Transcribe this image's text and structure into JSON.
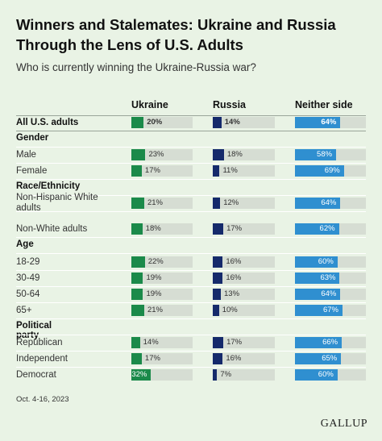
{
  "title": "Winners and Stalemates: Ukraine and Russia Through the Lens of U.S. Adults",
  "subtitle": "Who is currently winning the Ukraine-Russia war?",
  "footer": "Oct. 4-16, 2023",
  "logo": "GALLUP",
  "chart_data": {
    "type": "bar",
    "orientation": "horizontal",
    "unit": "%",
    "xlim": [
      0,
      100
    ],
    "series": [
      {
        "name": "Ukraine",
        "color": "#1b8a4a"
      },
      {
        "name": "Russia",
        "color": "#152a6b"
      },
      {
        "name": "Neither side",
        "color": "#2f8fd0"
      }
    ],
    "rows": [
      {
        "kind": "row",
        "label": "All U.S. adults",
        "bold": true,
        "values": [
          20,
          14,
          64
        ]
      },
      {
        "kind": "section",
        "label": "Gender"
      },
      {
        "kind": "row",
        "label": "Male",
        "values": [
          23,
          18,
          58
        ]
      },
      {
        "kind": "row",
        "label": "Female",
        "values": [
          17,
          11,
          69
        ]
      },
      {
        "kind": "section",
        "label": "Race/Ethnicity"
      },
      {
        "kind": "row",
        "label": "Non-Hispanic White adults",
        "values": [
          21,
          12,
          64
        ]
      },
      {
        "kind": "row",
        "label": "Non-White adults",
        "values": [
          18,
          17,
          62
        ]
      },
      {
        "kind": "section",
        "label": "Age"
      },
      {
        "kind": "row",
        "label": "18-29",
        "values": [
          22,
          16,
          60
        ]
      },
      {
        "kind": "row",
        "label": "30-49",
        "values": [
          19,
          16,
          63
        ]
      },
      {
        "kind": "row",
        "label": "50-64",
        "values": [
          19,
          13,
          64
        ]
      },
      {
        "kind": "row",
        "label": "65+",
        "values": [
          21,
          10,
          67
        ]
      },
      {
        "kind": "section",
        "label": "Political party"
      },
      {
        "kind": "row",
        "label": "Republican",
        "values": [
          14,
          17,
          66
        ]
      },
      {
        "kind": "row",
        "label": "Independent",
        "values": [
          17,
          16,
          65
        ]
      },
      {
        "kind": "row",
        "label": "Democrat",
        "values": [
          32,
          7,
          60
        ]
      }
    ]
  }
}
